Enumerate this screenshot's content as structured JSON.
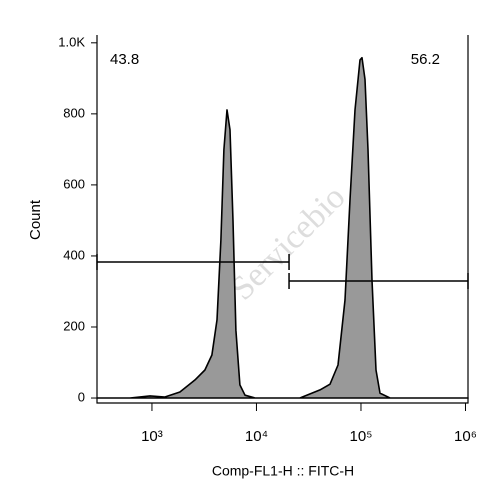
{
  "chart_data": {
    "type": "histogram",
    "x_label": "Comp-FL1-H :: FITC-H",
    "y_label": "Count",
    "watermark": "Servicebio",
    "xscale": "log",
    "color": "#999999",
    "xlim": [
      298,
      1057000
    ],
    "ylim": [
      -14,
      1022
    ],
    "xticks": [
      {
        "value": 1000,
        "label": "10³"
      },
      {
        "value": 10000,
        "label": "10⁴"
      },
      {
        "value": 100000,
        "label": "10⁵"
      },
      {
        "value": 1000000,
        "label": "10⁶"
      }
    ],
    "yticks": [
      0,
      200,
      400,
      600,
      800,
      {
        "value": 1000,
        "label": "1.0K"
      }
    ],
    "x": [
      298,
      615,
      957,
      1330,
      1853,
      2580,
      3210,
      3750,
      4190,
      4570,
      4880,
      5220,
      5580,
      5960,
      6360,
      6950,
      7760,
      9680,
      26060,
      40550,
      50500,
      60260,
      70300,
      78500,
      87700,
      97800,
      102300,
      109200,
      116700,
      127400,
      139200,
      152100,
      189700,
      1057000
    ],
    "values": [
      0,
      0,
      6,
      3,
      17,
      51,
      79,
      121,
      220,
      445,
      699,
      811,
      755,
      499,
      191,
      37,
      8,
      0,
      0,
      23,
      39,
      93,
      276,
      558,
      811,
      952,
      958,
      897,
      699,
      332,
      79,
      14,
      0,
      0
    ],
    "gates": [
      {
        "label": "43.8",
        "range": [
          298,
          20500
        ]
      },
      {
        "label": "56.2",
        "range": [
          20500,
          1057000
        ]
      }
    ]
  }
}
